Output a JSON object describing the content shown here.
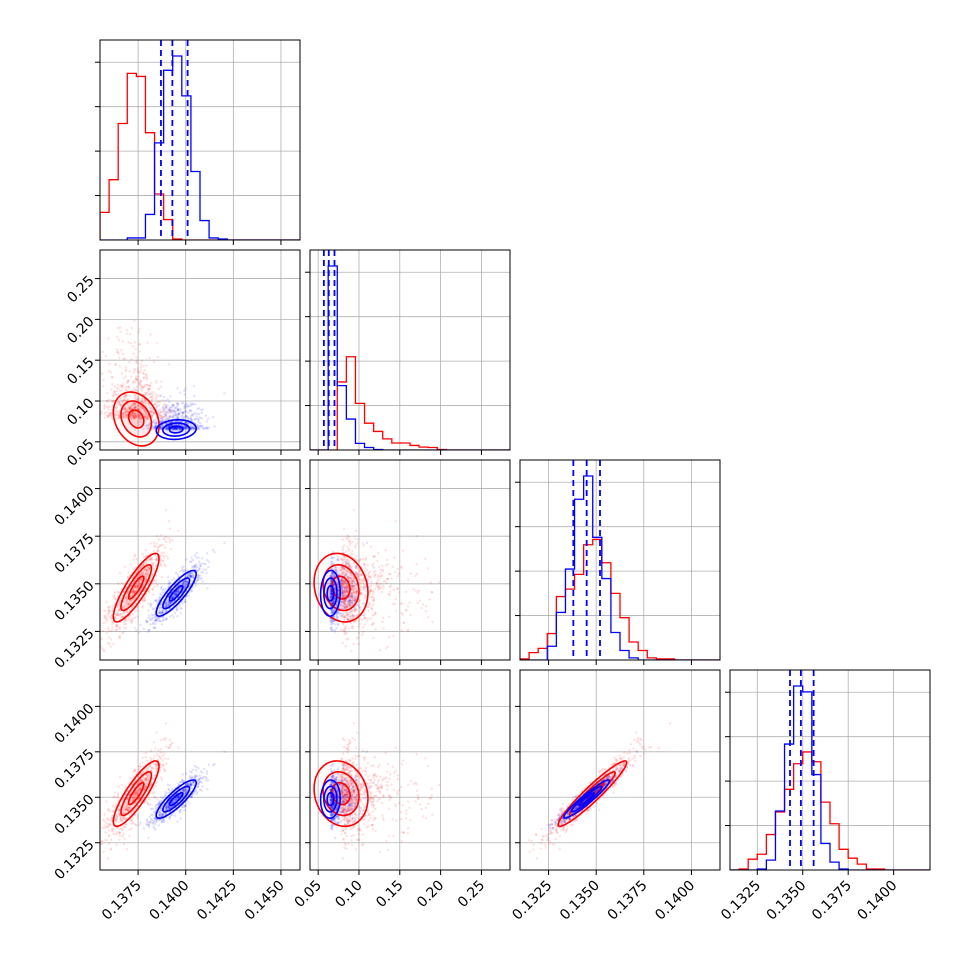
{
  "colors": {
    "series_a": "#ff0000",
    "series_b": "#0000ff",
    "grid": "#b0b0b0",
    "axes": "#000000"
  },
  "chart_data": {
    "type": "corner",
    "grid": true,
    "n_params": 4,
    "series": [
      {
        "color": "#ff0000",
        "means": [
          0.1374,
          0.078,
          0.1348,
          0.1352
        ],
        "stds": [
          0.0008,
          0.022,
          0.0012,
          0.0012
        ],
        "corr": [
          [
            1,
            -0.25,
            0.85,
            0.85
          ],
          [
            -0.25,
            1,
            -0.15,
            -0.15
          ],
          [
            0.85,
            -0.15,
            1,
            0.95
          ],
          [
            0.85,
            -0.15,
            0.95,
            1
          ]
        ]
      },
      {
        "color": "#0000ff",
        "means": [
          0.1395,
          0.065,
          0.1345,
          0.1349
        ],
        "stds": [
          0.0007,
          0.008,
          0.0008,
          0.0007
        ],
        "corr": [
          [
            1,
            0.1,
            0.85,
            0.85
          ],
          [
            0.1,
            1,
            0.05,
            0.05
          ],
          [
            0.85,
            0.05,
            1,
            0.95
          ],
          [
            0.85,
            0.05,
            0.95,
            1
          ]
        ]
      }
    ],
    "quantile_lines": [
      {
        "param": 0,
        "color": "#0000ff",
        "values": [
          0.1387,
          0.1393,
          0.1401
        ]
      },
      {
        "param": 1,
        "color": "#0000ff",
        "values": [
          0.057,
          0.063,
          0.07
        ]
      },
      {
        "param": 2,
        "color": "#0000ff",
        "values": [
          0.1338,
          0.1345,
          0.1352
        ]
      },
      {
        "param": 3,
        "color": "#0000ff",
        "values": [
          0.1343,
          0.1349,
          0.1356
        ]
      }
    ],
    "axes": [
      {
        "param": 0,
        "range": [
          0.1355,
          0.146
        ],
        "ticks": [
          0.1375,
          0.14,
          0.1425,
          0.145
        ],
        "tick_labels": [
          "0.1375",
          "0.1400",
          "0.1425",
          "0.1450"
        ]
      },
      {
        "param": 1,
        "range": [
          0.04,
          0.285
        ],
        "ticks": [
          0.05,
          0.1,
          0.15,
          0.2,
          0.25
        ],
        "tick_labels": [
          "0.05",
          "0.10",
          "0.15",
          "0.20",
          "0.25"
        ]
      },
      {
        "param": 2,
        "range": [
          0.131,
          0.1415
        ],
        "ticks": [
          0.1325,
          0.135,
          0.1375,
          0.14
        ],
        "tick_labels": [
          "0.1325",
          "0.1350",
          "0.1375",
          "0.1400"
        ]
      },
      {
        "param": 3,
        "range": [
          0.131,
          0.142
        ],
        "ticks": [
          0.1325,
          0.135,
          0.1375,
          0.14
        ],
        "tick_labels": [
          "0.1325",
          "0.1350",
          "0.1375",
          "0.1400"
        ]
      }
    ]
  }
}
